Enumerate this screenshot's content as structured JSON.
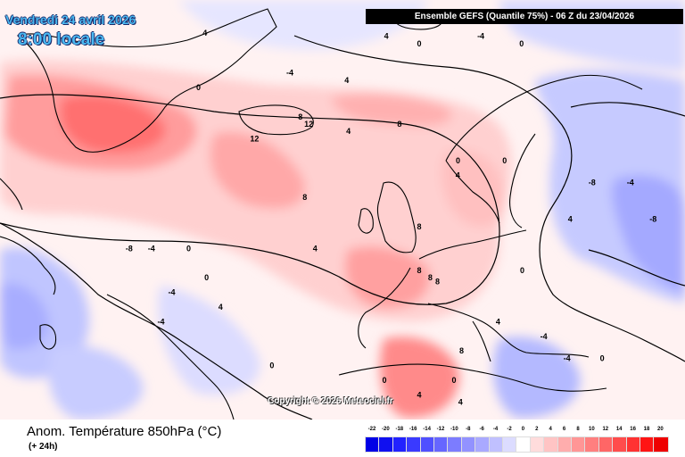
{
  "header": {
    "date": "Vendredi 24 avril 2026",
    "time": "8:00 locale",
    "run": "Ensemble GEFS  (Quantile 75%) - 06 Z du 23/04/2026"
  },
  "footer": {
    "variable": "Anom. Température 850hPa (°C)",
    "lead": "(+ 24h)"
  },
  "copyright": "Copyright © 2026 Meteociel.fr",
  "legend": {
    "labels": [
      "-22",
      "-20",
      "-18",
      "-16",
      "-14",
      "-12",
      "-10",
      "-8",
      "-6",
      "-4",
      "-2",
      "0",
      "2",
      "4",
      "6",
      "8",
      "10",
      "12",
      "14",
      "16",
      "18",
      "20"
    ],
    "colors": [
      "#0000e6",
      "#1010f0",
      "#2222ff",
      "#3a3aff",
      "#5050ff",
      "#6666ff",
      "#7c7cff",
      "#9292ff",
      "#a9a9ff",
      "#c0c0ff",
      "#dcdcff",
      "#ffffff",
      "#ffdcdc",
      "#ffc4c4",
      "#ffadad",
      "#ff9696",
      "#ff7f7f",
      "#ff6666",
      "#ff4c4c",
      "#ff3232",
      "#ff1414",
      "#ee0000"
    ]
  },
  "map": {
    "contour_labels": [
      {
        "text": "4",
        "lon": -52,
        "lat": 78
      },
      {
        "text": "4",
        "lon": -8,
        "lat": 77
      },
      {
        "text": "0",
        "lon": 0,
        "lat": 76
      },
      {
        "text": "-4",
        "lon": 15,
        "lat": 77
      },
      {
        "text": "0",
        "lon": 25,
        "lat": 76
      },
      {
        "text": "-4",
        "lon": -32,
        "lat": 72
      },
      {
        "text": "4",
        "lon": -18,
        "lat": 71
      },
      {
        "text": "0",
        "lon": -55,
        "lat": 70
      },
      {
        "text": "8",
        "lon": -30,
        "lat": 66
      },
      {
        "text": "12",
        "lon": -28,
        "lat": 65
      },
      {
        "text": "12",
        "lon": -42,
        "lat": 63
      },
      {
        "text": "8",
        "lon": -5,
        "lat": 65
      },
      {
        "text": "4",
        "lon": -18,
        "lat": 64
      },
      {
        "text": "8",
        "lon": -30,
        "lat": 55
      },
      {
        "text": "0",
        "lon": 10,
        "lat": 60
      },
      {
        "text": "0",
        "lon": 22,
        "lat": 60
      },
      {
        "text": "4",
        "lon": 10,
        "lat": 58
      },
      {
        "text": "8",
        "lon": 0,
        "lat": 51
      },
      {
        "text": "4",
        "lon": -28,
        "lat": 48
      },
      {
        "text": "-8",
        "lon": 45,
        "lat": 57
      },
      {
        "text": "-4",
        "lon": 55,
        "lat": 57
      },
      {
        "text": "4",
        "lon": 40,
        "lat": 52
      },
      {
        "text": "-8",
        "lon": 62,
        "lat": 52
      },
      {
        "text": "0",
        "lon": -62,
        "lat": 48
      },
      {
        "text": "-8",
        "lon": -78,
        "lat": 48
      },
      {
        "text": "-4",
        "lon": -72,
        "lat": 48
      },
      {
        "text": "0",
        "lon": -58,
        "lat": 44
      },
      {
        "text": "-4",
        "lon": -68,
        "lat": 42
      },
      {
        "text": "8",
        "lon": 0,
        "lat": 45
      },
      {
        "text": "8",
        "lon": 3,
        "lat": 44
      },
      {
        "text": "8",
        "lon": 5,
        "lat": 43.5
      },
      {
        "text": "0",
        "lon": 28,
        "lat": 45
      },
      {
        "text": "4",
        "lon": 22,
        "lat": 38
      },
      {
        "text": "-4",
        "lon": 35,
        "lat": 36
      },
      {
        "text": "-4",
        "lon": -72,
        "lat": 38
      },
      {
        "text": "4",
        "lon": -55,
        "lat": 40
      },
      {
        "text": "0",
        "lon": -42,
        "lat": 32
      },
      {
        "text": "0",
        "lon": 10,
        "lat": 30
      },
      {
        "text": "8",
        "lon": 12,
        "lat": 34
      },
      {
        "text": "0",
        "lon": -10,
        "lat": 30
      },
      {
        "text": "4",
        "lon": 0,
        "lat": 28
      },
      {
        "text": "4",
        "lon": 12,
        "lat": 27
      },
      {
        "text": "-4",
        "lon": 42,
        "lat": 33
      },
      {
        "text": "0",
        "lon": 52,
        "lat": 33
      }
    ]
  }
}
